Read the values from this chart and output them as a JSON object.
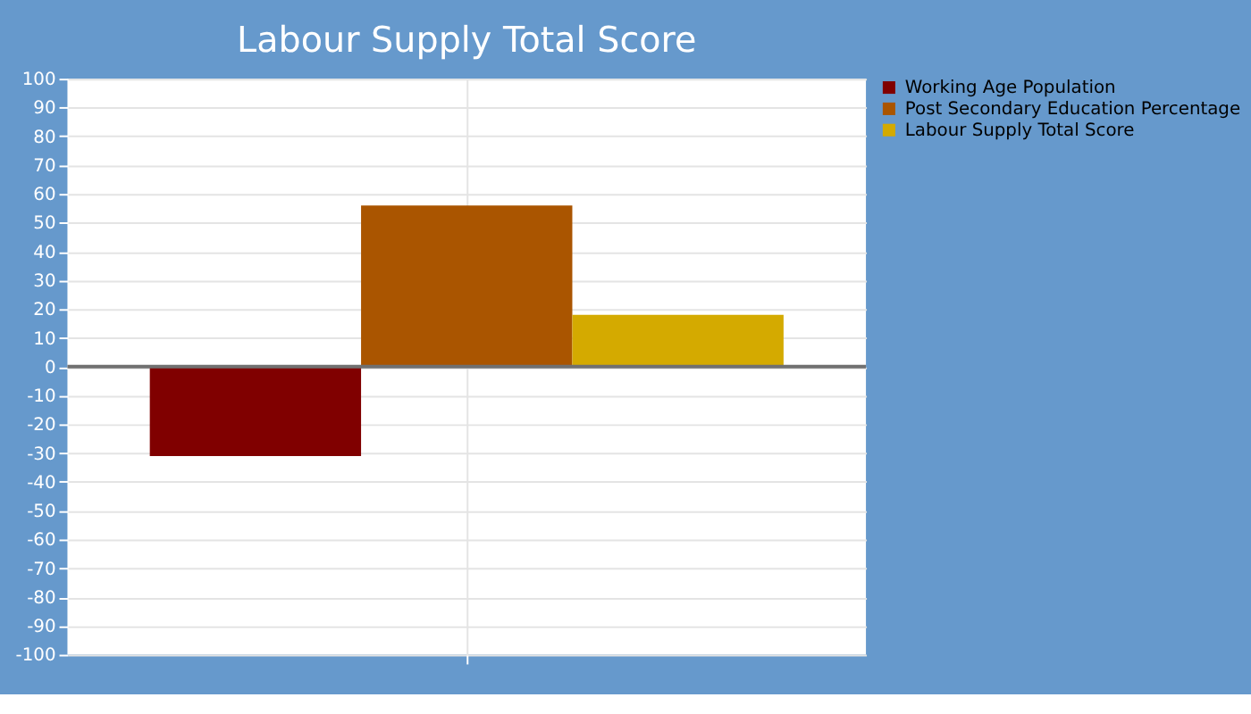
{
  "chart_data": {
    "type": "bar",
    "title": "Labour Supply Total Score",
    "categories": [
      null
    ],
    "series": [
      {
        "name": "Working Age Population",
        "color": "#800000",
        "values": [
          -31
        ]
      },
      {
        "name": "Post Secondary Education Percentage",
        "color": "#aa5500",
        "values": [
          56
        ]
      },
      {
        "name": "Labour Supply Total Score",
        "color": "#d4aa00",
        "values": [
          18
        ]
      }
    ],
    "ylim": [
      -100,
      100
    ],
    "yticks": [
      -100,
      -90,
      -80,
      -70,
      -60,
      -50,
      -40,
      -30,
      -20,
      -10,
      0,
      10,
      20,
      30,
      40,
      50,
      60,
      70,
      80,
      90,
      100
    ],
    "ref_lines": [
      {
        "axis": "y",
        "value": 0,
        "color": "#707070"
      }
    ],
    "grid": true,
    "legend": "top right",
    "tick_labels": "y"
  }
}
